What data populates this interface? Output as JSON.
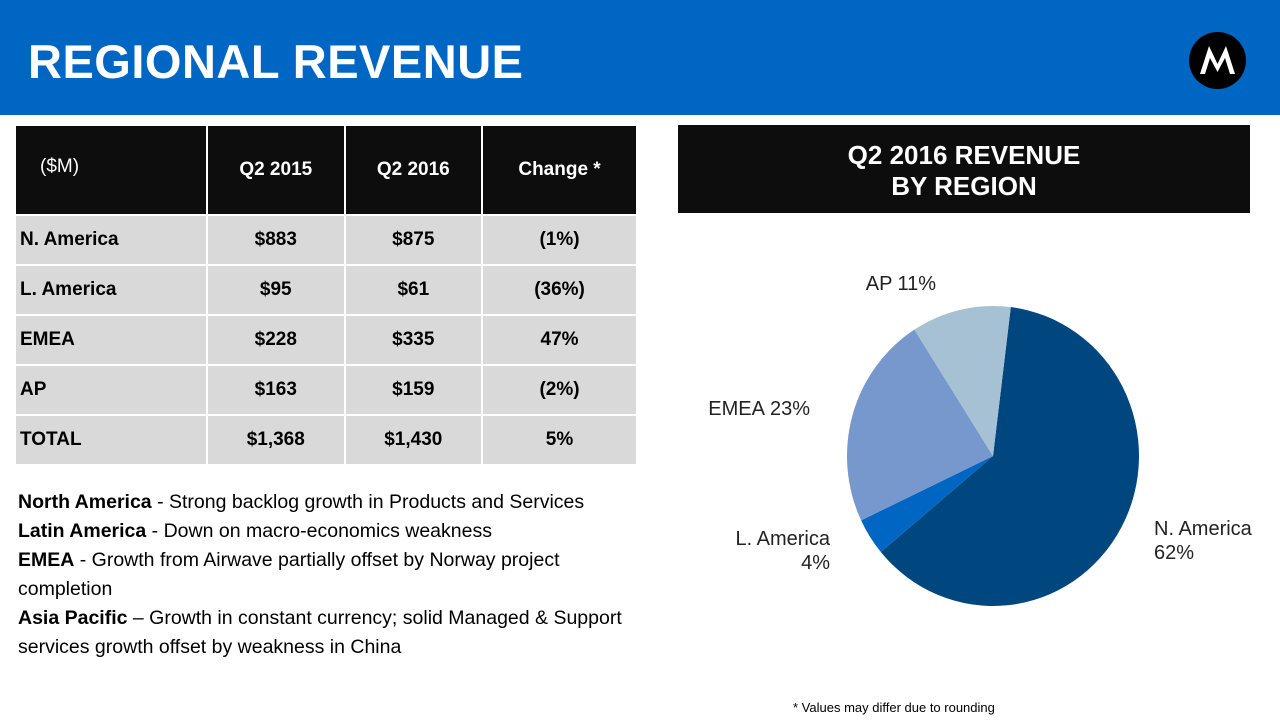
{
  "header": {
    "title": "REGIONAL REVENUE",
    "logo": "Motorola Solutions"
  },
  "table": {
    "unit": "($M)",
    "columns": [
      "Q2 2015",
      "Q2 2016",
      "Change *"
    ],
    "rows": [
      {
        "region": "N. America",
        "q2_2015": "$883",
        "q2_2016": "$875",
        "change": "(1%)"
      },
      {
        "region": "L. America",
        "q2_2015": "$95",
        "q2_2016": "$61",
        "change": "(36%)"
      },
      {
        "region": "EMEA",
        "q2_2015": "$228",
        "q2_2016": "$335",
        "change": "47%"
      },
      {
        "region": "AP",
        "q2_2015": "$163",
        "q2_2016": "$159",
        "change": "(2%)"
      },
      {
        "region": "TOTAL",
        "q2_2015": "$1,368",
        "q2_2016": "$1,430",
        "change": "5%"
      }
    ]
  },
  "notes": [
    {
      "bold": "North America",
      "text": " - Strong backlog growth in Products and Services"
    },
    {
      "bold": "Latin America",
      "text": " - Down on macro-economics weakness"
    },
    {
      "bold": "EMEA",
      "text": " - Growth from Airwave partially offset by Norway project completion"
    },
    {
      "bold": "Asia Pacific",
      "text": " – Growth in constant currency; solid Managed & Support services growth offset by weakness in China"
    }
  ],
  "footnote": "* Values may differ due to rounding",
  "chart_data": {
    "type": "pie",
    "title_line1": "Q2 2016 REVENUE",
    "title_line2": "BY REGION",
    "slices": [
      {
        "label": "N. America",
        "value": 62,
        "display": "62%",
        "color": "#00467f"
      },
      {
        "label": "L. America",
        "value": 4,
        "display": "4%",
        "color": "#0066c4"
      },
      {
        "label": "EMEA",
        "value": 23,
        "display": "23%",
        "color": "#7698cc"
      },
      {
        "label": "AP",
        "value": 11,
        "display": "11%",
        "color": "#a6c0d4"
      }
    ]
  }
}
